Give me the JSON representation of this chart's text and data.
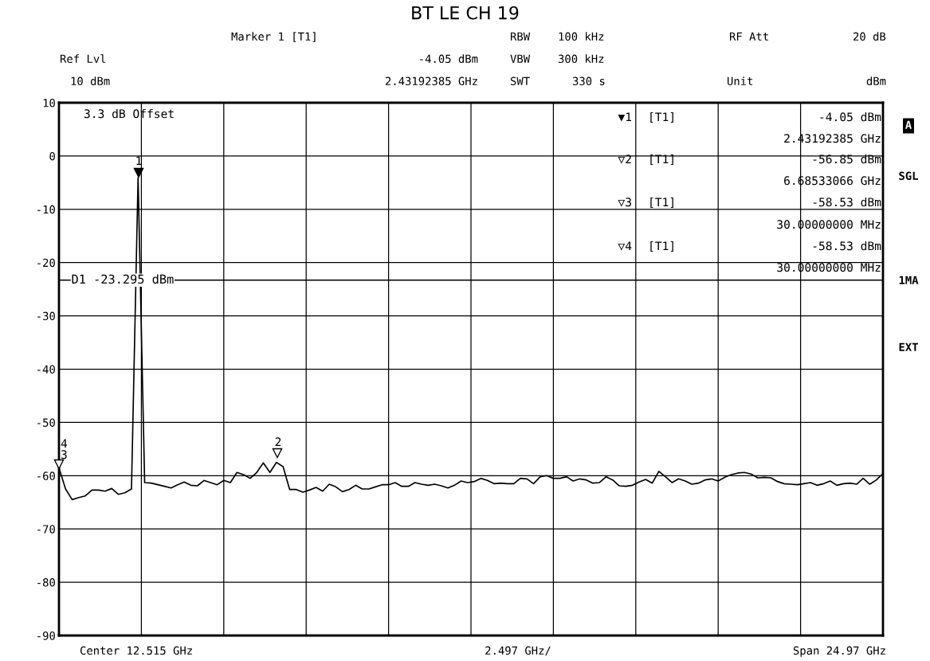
{
  "chart_data": {
    "type": "line",
    "title": "BT LE CH 19",
    "categories": [
      null,
      null,
      null,
      null,
      null,
      null,
      null,
      null,
      null,
      null,
      null,
      null,
      null,
      null,
      null,
      null,
      null,
      null,
      null,
      null,
      null,
      null,
      null,
      null,
      null,
      null,
      null,
      null,
      null,
      null,
      null,
      null,
      null,
      null,
      null,
      null,
      null,
      null,
      null,
      null,
      null,
      null,
      null,
      null,
      null,
      null,
      null,
      null,
      null,
      null,
      null,
      null,
      null,
      null,
      null,
      null,
      null,
      null,
      null,
      null,
      null,
      null,
      null,
      null,
      null,
      null,
      null,
      null,
      null,
      null,
      null,
      null,
      null,
      null,
      null,
      null,
      null,
      null,
      null,
      null,
      null,
      null,
      null,
      null,
      null,
      null,
      null,
      null,
      null,
      null,
      null,
      null,
      null,
      null,
      null,
      null,
      null,
      null,
      null,
      null,
      null,
      null,
      null,
      null,
      null,
      null,
      null,
      null,
      null,
      null,
      null,
      null,
      null,
      null,
      null,
      null,
      null,
      null,
      null,
      null,
      null,
      null,
      null,
      null,
      null,
      null
    ],
    "series": [
      {
        "color": "#000000",
        "values": [
          -58.53,
          -62.5,
          -64.5,
          -64.1,
          -63.8,
          -62.7,
          -62.7,
          -62.9,
          -62.4,
          -63.5,
          -63.2,
          -62.5,
          -4.05,
          -61.3,
          -61.4,
          -61.7,
          -62.0,
          -62.3,
          -61.7,
          -61.2,
          -61.8,
          -61.9,
          -60.9,
          -61.3,
          -61.7,
          -60.9,
          -61.3,
          -59.4,
          -59.8,
          -60.5,
          -59.4,
          -57.6,
          -59.4,
          -57.5,
          -58.3,
          -62.6,
          -62.6,
          -63.1,
          -62.7,
          -62.2,
          -62.9,
          -61.6,
          -62.1,
          -63.0,
          -62.6,
          -61.8,
          -62.5,
          -62.5,
          -62.1,
          -61.7,
          -61.7,
          -61.3,
          -62.0,
          -62.0,
          -61.3,
          -61.6,
          -61.8,
          -61.6,
          -61.9,
          -62.3,
          -61.8,
          -61.0,
          -61.3,
          -61.1,
          -60.5,
          -60.9,
          -61.5,
          -61.4,
          -61.5,
          -61.5,
          -60.5,
          -60.6,
          -61.5,
          -60.2,
          -60.0,
          -60.5,
          -60.5,
          -60.2,
          -61.0,
          -60.6,
          -60.8,
          -61.4,
          -61.3,
          -60.2,
          -60.8,
          -61.9,
          -62.0,
          -61.8,
          -61.2,
          -60.7,
          -61.4,
          -59.2,
          -60.2,
          -61.3,
          -60.6,
          -61.0,
          -61.6,
          -61.4,
          -60.8,
          -60.6,
          -61.0,
          -60.3,
          -59.8,
          -59.5,
          -59.4,
          -59.7,
          -60.4,
          -60.3,
          -60.4,
          -61.1,
          -61.5,
          -61.6,
          -61.7,
          -61.5,
          -61.3,
          -61.8,
          -61.5,
          -61.0,
          -61.8,
          -61.5,
          -61.4,
          -61.6,
          -60.5,
          -61.6,
          -60.8,
          -59.6
        ]
      }
    ],
    "ylim": [
      -90,
      10
    ],
    "yticks": [
      -90,
      -80,
      -70,
      -60,
      -50,
      -40,
      -30,
      -20,
      -10,
      0,
      10
    ],
    "grid": true,
    "ref_lines": [
      {
        "axis": "y",
        "value": -23.295,
        "label": "D1 -23.295 dBm",
        "color": "#000000"
      }
    ],
    "annotations": [
      "1",
      "2",
      "3",
      "4",
      "Marker 1 [T1]",
      "RBW",
      "100 kHz",
      "RF Att",
      "20 dB",
      "Ref Lvl",
      "-4.05 dBm",
      "VBW",
      "300 kHz",
      "10 dBm",
      "2.43192385 GHz",
      "SWT",
      "330 s",
      "Unit",
      "dBm",
      "3.3 dB Offset",
      "▼1",
      "[T1]",
      "-4.05 dBm",
      "2.43192385 GHz",
      "▽2",
      "[T1]",
      "-56.85 dBm",
      "6.68533066 GHz",
      "▽3",
      "[T1]",
      "-58.53 dBm",
      "30.00000000 MHz",
      "▽4",
      "[T1]",
      "-58.53 dBm",
      "30.00000000 MHz",
      "A",
      "SGL",
      "1MA",
      "EXT",
      "Center 12.515 GHz",
      "2.497 GHz/",
      "Span 24.97 GHz"
    ]
  }
}
